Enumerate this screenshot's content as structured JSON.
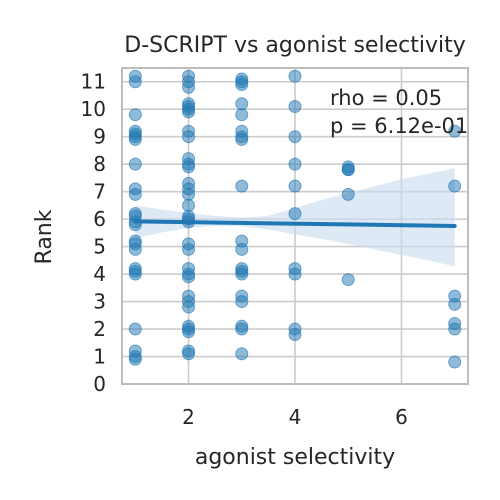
{
  "chart_data": {
    "type": "scatter",
    "title": "D-SCRIPT vs agonist selectivity",
    "xlabel": "agonist selectivity",
    "ylabel": "Rank",
    "xlim": [
      0.75,
      7.25
    ],
    "ylim": [
      0,
      11.5
    ],
    "xticks": [
      2,
      4,
      6
    ],
    "yticks": [
      0,
      1,
      2,
      3,
      4,
      5,
      6,
      7,
      8,
      9,
      10,
      11
    ],
    "grid": true,
    "point_color": "#1f77b4",
    "ci_color": "#c6dbef",
    "points": [
      [
        1,
        11.2
      ],
      [
        1,
        11.0
      ],
      [
        1,
        9.8
      ],
      [
        1,
        9.2
      ],
      [
        1,
        9.1
      ],
      [
        1,
        9.0
      ],
      [
        1,
        8.9
      ],
      [
        1,
        8.0
      ],
      [
        1,
        7.1
      ],
      [
        1,
        6.9
      ],
      [
        1,
        6.2
      ],
      [
        1,
        6.1
      ],
      [
        1,
        5.9
      ],
      [
        1,
        5.8
      ],
      [
        1,
        5.2
      ],
      [
        1,
        5.1
      ],
      [
        1,
        4.9
      ],
      [
        1,
        4.2
      ],
      [
        1,
        4.1
      ],
      [
        1,
        4.0
      ],
      [
        1,
        2.0
      ],
      [
        1,
        1.2
      ],
      [
        1,
        1.0
      ],
      [
        1,
        0.9
      ],
      [
        2,
        11.2
      ],
      [
        2,
        11.0
      ],
      [
        2,
        10.8
      ],
      [
        2,
        10.2
      ],
      [
        2,
        10.1
      ],
      [
        2,
        10.0
      ],
      [
        2,
        9.9
      ],
      [
        2,
        9.2
      ],
      [
        2,
        9.0
      ],
      [
        2,
        8.2
      ],
      [
        2,
        8.0
      ],
      [
        2,
        7.9
      ],
      [
        2,
        7.3
      ],
      [
        2,
        7.1
      ],
      [
        2,
        6.9
      ],
      [
        2,
        6.5
      ],
      [
        2,
        6.1
      ],
      [
        2,
        6.0
      ],
      [
        2,
        5.9
      ],
      [
        2,
        5.1
      ],
      [
        2,
        4.9
      ],
      [
        2,
        4.2
      ],
      [
        2,
        4.0
      ],
      [
        2,
        3.9
      ],
      [
        2,
        3.2
      ],
      [
        2,
        3.0
      ],
      [
        2,
        2.8
      ],
      [
        2,
        2.1
      ],
      [
        2,
        2.0
      ],
      [
        2,
        1.9
      ],
      [
        2,
        1.2
      ],
      [
        2,
        1.1
      ],
      [
        3,
        11.1
      ],
      [
        3,
        11.0
      ],
      [
        3,
        10.9
      ],
      [
        3,
        10.2
      ],
      [
        3,
        9.8
      ],
      [
        3,
        9.2
      ],
      [
        3,
        9.0
      ],
      [
        3,
        8.9
      ],
      [
        3,
        7.2
      ],
      [
        3,
        5.2
      ],
      [
        3,
        4.9
      ],
      [
        3,
        4.2
      ],
      [
        3,
        4.1
      ],
      [
        3,
        4.0
      ],
      [
        3,
        3.2
      ],
      [
        3,
        3.0
      ],
      [
        3,
        2.1
      ],
      [
        3,
        2.0
      ],
      [
        3,
        1.1
      ],
      [
        4,
        11.2
      ],
      [
        4,
        10.1
      ],
      [
        4,
        9.0
      ],
      [
        4,
        8.0
      ],
      [
        4,
        7.2
      ],
      [
        4,
        6.2
      ],
      [
        4,
        4.2
      ],
      [
        4,
        4.0
      ],
      [
        4,
        2.0
      ],
      [
        4,
        1.8
      ],
      [
        5,
        7.8
      ],
      [
        5,
        7.8
      ],
      [
        5,
        7.9
      ],
      [
        5,
        6.9
      ],
      [
        5,
        3.8
      ],
      [
        7,
        9.2
      ],
      [
        7,
        7.2
      ],
      [
        7,
        3.2
      ],
      [
        7,
        2.9
      ],
      [
        7,
        2.2
      ],
      [
        7,
        2.0
      ],
      [
        7,
        0.8
      ]
    ],
    "regression": {
      "x": [
        1,
        7
      ],
      "y": [
        5.92,
        5.75
      ]
    },
    "ci_band": {
      "x": [
        1,
        1.5,
        2,
        2.5,
        3,
        3.5,
        4,
        4.5,
        5,
        5.5,
        6,
        6.5,
        7
      ],
      "lower": [
        5.3,
        5.52,
        5.68,
        5.75,
        5.74,
        5.62,
        5.45,
        5.28,
        5.1,
        4.9,
        4.7,
        4.5,
        4.28
      ],
      "upper": [
        6.5,
        6.35,
        6.22,
        6.12,
        6.05,
        6.12,
        6.4,
        6.7,
        6.95,
        7.2,
        7.45,
        7.65,
        7.85
      ]
    },
    "annotation": [
      "rho = 0.05",
      "p = 6.12e-01"
    ]
  }
}
